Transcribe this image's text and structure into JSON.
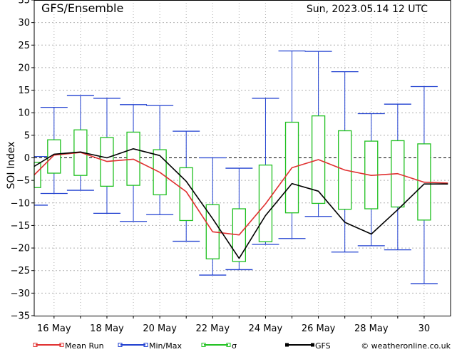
{
  "header": {
    "title": "GFS/Ensemble",
    "run": "Sun, 2023.05.14   12 UTC"
  },
  "legend": {
    "mean": "Mean Run",
    "minmax": "Min/Max",
    "sigma": "σ",
    "gfs": "GFS",
    "credit": "© weatheronline.co.uk"
  },
  "colors": {
    "mean": "#e03030",
    "minmax": "#2040d0",
    "sigma": "#20c020",
    "gfs": "#000000",
    "grid": "#b0b0b0",
    "zero": "#000000"
  },
  "chart_data": {
    "type": "box-line",
    "ylabel": "SOI Index",
    "ylim": [
      -35,
      35
    ],
    "yticks": [
      -35,
      -30,
      -25,
      -20,
      -15,
      -10,
      -5,
      0,
      5,
      10,
      15,
      20,
      25,
      30,
      35
    ],
    "xlim": [
      15.25,
      31.0
    ],
    "xticks": [
      {
        "day": 16,
        "label": "16 May"
      },
      {
        "day": 18,
        "label": "18 May"
      },
      {
        "day": 20,
        "label": "20 May"
      },
      {
        "day": 22,
        "label": "22 May"
      },
      {
        "day": 24,
        "label": "24 May"
      },
      {
        "day": 26,
        "label": "26 May"
      },
      {
        "day": 28,
        "label": "28 May"
      },
      {
        "day": 30,
        "label": "30"
      }
    ],
    "x": [
      15.25,
      16.0,
      17.0,
      18.0,
      19.0,
      20.0,
      21.0,
      22.0,
      23.0,
      24.0,
      25.0,
      26.0,
      27.0,
      28.0,
      29.0,
      30.0,
      30.9
    ],
    "series": [
      {
        "name": "Mean Run",
        "values": [
          -3.8,
          0.6,
          1.2,
          -0.8,
          -0.3,
          -3.2,
          -7.5,
          -16.4,
          -17.1,
          -10.2,
          -2.2,
          -0.4,
          -2.7,
          -3.9,
          -3.5,
          -5.4,
          -5.6
        ]
      },
      {
        "name": "GFS",
        "values": [
          -1.9,
          0.8,
          1.3,
          0.0,
          2.0,
          0.5,
          -5.2,
          -13.5,
          -22.3,
          -12.8,
          -5.7,
          -7.4,
          -14.3,
          -16.9,
          -11.5,
          -5.8,
          -5.8
        ]
      }
    ],
    "minmax": [
      {
        "x": 15.25,
        "min": -10.5,
        "max": 0.3
      },
      {
        "x": 16.0,
        "min": -7.9,
        "max": 11.2
      },
      {
        "x": 17.0,
        "min": -7.2,
        "max": 13.8
      },
      {
        "x": 18.0,
        "min": -12.3,
        "max": 13.2
      },
      {
        "x": 19.0,
        "min": -14.1,
        "max": 11.8
      },
      {
        "x": 20.0,
        "min": -12.6,
        "max": 11.6
      },
      {
        "x": 21.0,
        "min": -18.5,
        "max": 5.9
      },
      {
        "x": 22.0,
        "min": -26.0,
        "max": 0.0
      },
      {
        "x": 23.0,
        "min": -24.8,
        "max": -2.3
      },
      {
        "x": 24.0,
        "min": -19.2,
        "max": 13.2
      },
      {
        "x": 25.0,
        "min": -17.9,
        "max": 23.7
      },
      {
        "x": 26.0,
        "min": -13.0,
        "max": 23.6
      },
      {
        "x": 27.0,
        "min": -20.9,
        "max": 19.1
      },
      {
        "x": 28.0,
        "min": -19.5,
        "max": 9.8
      },
      {
        "x": 29.0,
        "min": -20.4,
        "max": 11.9
      },
      {
        "x": 30.0,
        "min": -27.9,
        "max": 15.8
      }
    ],
    "sigma": [
      {
        "x": 15.25,
        "low": -6.6,
        "high": -1.0
      },
      {
        "x": 16.0,
        "low": -3.4,
        "high": 4.0
      },
      {
        "x": 17.0,
        "low": -3.9,
        "high": 6.2
      },
      {
        "x": 18.0,
        "low": -6.3,
        "high": 4.5
      },
      {
        "x": 19.0,
        "low": -6.1,
        "high": 5.7
      },
      {
        "x": 20.0,
        "low": -8.2,
        "high": 1.8
      },
      {
        "x": 21.0,
        "low": -13.9,
        "high": -2.2
      },
      {
        "x": 22.0,
        "low": -22.4,
        "high": -10.4
      },
      {
        "x": 23.0,
        "low": -23.0,
        "high": -11.3
      },
      {
        "x": 24.0,
        "low": -18.6,
        "high": -1.6
      },
      {
        "x": 25.0,
        "low": -12.2,
        "high": 7.9
      },
      {
        "x": 26.0,
        "low": -10.1,
        "high": 9.3
      },
      {
        "x": 27.0,
        "low": -11.4,
        "high": 6.0
      },
      {
        "x": 28.0,
        "low": -11.3,
        "high": 3.7
      },
      {
        "x": 29.0,
        "low": -10.9,
        "high": 3.8
      },
      {
        "x": 30.0,
        "low": -13.8,
        "high": 3.1
      }
    ]
  }
}
